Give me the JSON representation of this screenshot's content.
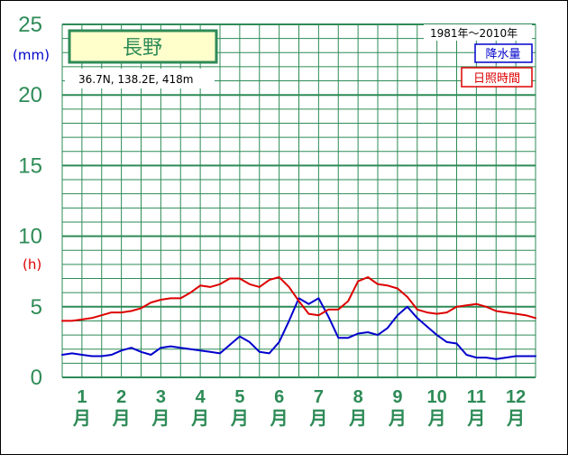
{
  "chart_data": {
    "type": "line",
    "title": "長野",
    "location": "36.7N,  138.2E,  418m",
    "period": "1981年〜2010年",
    "y_unit_precip": "(mm)",
    "y_unit_sunshine": "(h)",
    "ylim": [
      0,
      25
    ],
    "yticks": [
      "0",
      "5",
      "10",
      "15",
      "20",
      "25"
    ],
    "month_labels": [
      "1",
      "2",
      "3",
      "4",
      "5",
      "6",
      "7",
      "8",
      "9",
      "10",
      "11",
      "12"
    ],
    "month_unit": "月",
    "x": [
      0.0,
      0.25,
      0.5,
      0.75,
      1.0,
      1.25,
      1.5,
      1.75,
      2.0,
      2.25,
      2.5,
      2.75,
      3.0,
      3.25,
      3.5,
      3.75,
      4.0,
      4.25,
      4.5,
      4.75,
      5.0,
      5.25,
      5.5,
      5.75,
      6.0,
      6.25,
      6.5,
      6.75,
      7.0,
      7.25,
      7.5,
      7.75,
      8.0,
      8.25,
      8.5,
      8.75,
      9.0,
      9.25,
      9.5,
      9.75,
      10.0,
      10.25,
      10.5,
      10.75,
      11.0,
      11.25,
      11.5,
      11.75,
      12.0
    ],
    "series": [
      {
        "name": "降水量",
        "color": "#0000cc",
        "values": [
          1.6,
          1.7,
          1.6,
          1.5,
          1.5,
          1.6,
          1.9,
          2.1,
          1.8,
          1.6,
          2.1,
          2.2,
          2.1,
          2.0,
          1.9,
          1.8,
          1.7,
          2.3,
          2.9,
          2.5,
          1.8,
          1.7,
          2.5,
          4.0,
          5.6,
          5.2,
          5.6,
          4.3,
          2.8,
          2.8,
          3.1,
          3.2,
          3.0,
          3.5,
          4.4,
          5.0,
          4.2,
          3.6,
          3.0,
          2.5,
          2.4,
          1.6,
          1.4,
          1.4,
          1.3,
          1.4,
          1.5,
          1.5,
          1.5
        ]
      },
      {
        "name": "日照時間",
        "color": "#dd0000",
        "values": [
          4.0,
          4.0,
          4.1,
          4.2,
          4.4,
          4.6,
          4.6,
          4.7,
          4.9,
          5.3,
          5.5,
          5.6,
          5.6,
          6.0,
          6.5,
          6.4,
          6.6,
          7.0,
          7.0,
          6.6,
          6.4,
          6.9,
          7.1,
          6.4,
          5.4,
          4.5,
          4.4,
          4.8,
          4.8,
          5.4,
          6.8,
          7.1,
          6.6,
          6.5,
          6.3,
          5.7,
          4.8,
          4.6,
          4.5,
          4.6,
          5.0,
          5.1,
          5.2,
          5.0,
          4.7,
          4.6,
          4.5,
          4.4,
          4.2
        ]
      }
    ],
    "grid": true,
    "legend": "top-right"
  },
  "colors": {
    "grid": "#2e8b57",
    "precip": "#0000cc",
    "sunshine": "#dd0000",
    "title_box_fill": "#ffffcc"
  }
}
